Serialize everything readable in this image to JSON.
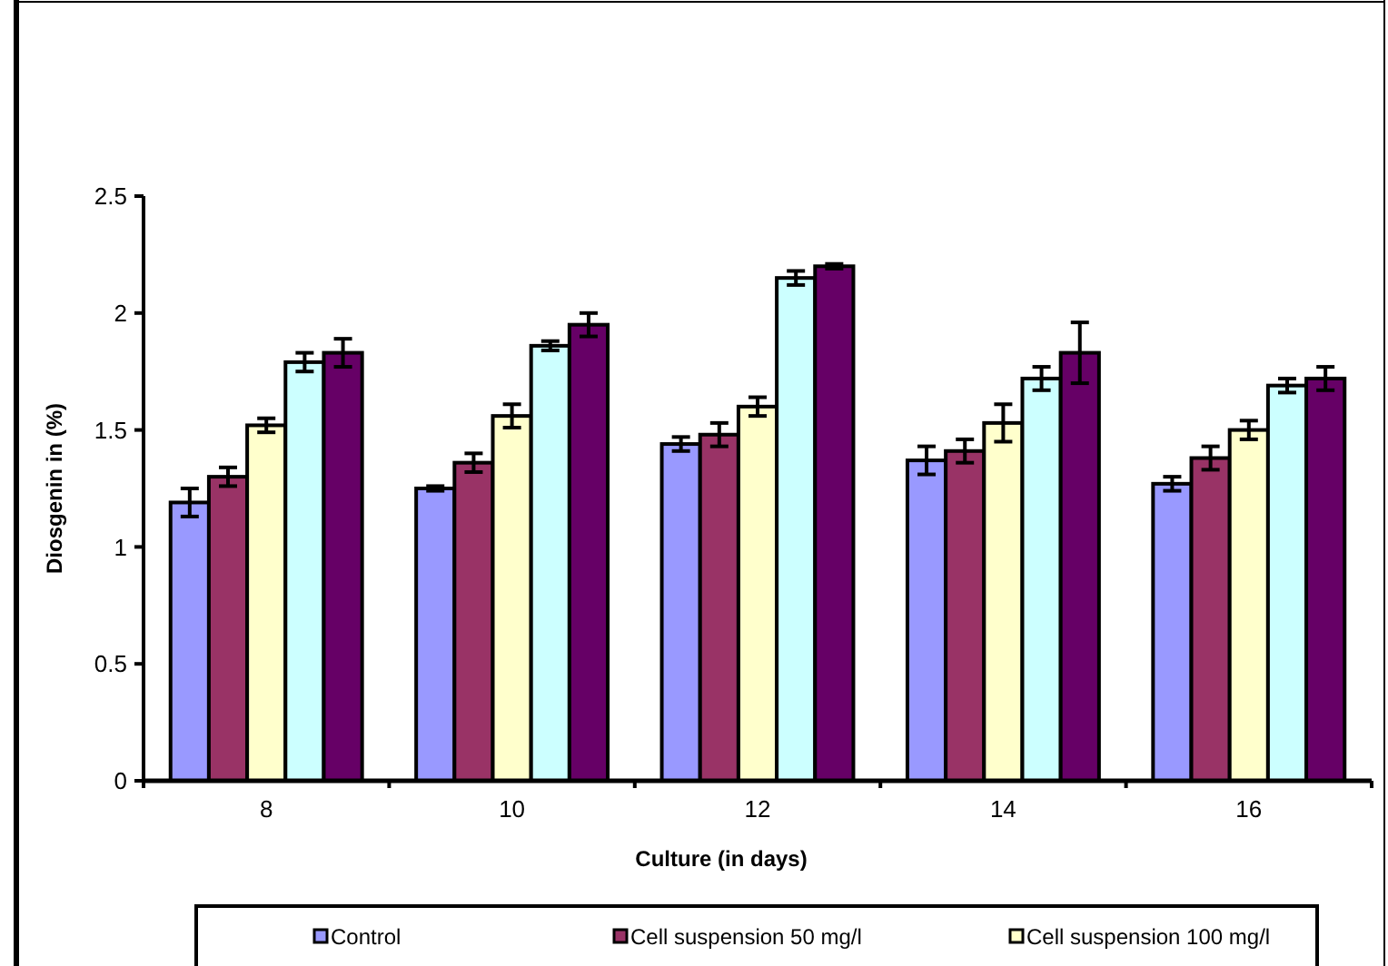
{
  "chart_data": {
    "type": "bar",
    "xlabel": "Culture (in days)",
    "ylabel": "Diosgenin in (%)",
    "categories": [
      "8",
      "10",
      "12",
      "14",
      "16"
    ],
    "series": [
      {
        "name": "Control",
        "color": "#9999ff",
        "values": [
          1.19,
          1.25,
          1.44,
          1.37,
          1.27
        ],
        "errors": [
          0.06,
          0.01,
          0.03,
          0.06,
          0.03
        ]
      },
      {
        "name": "Cell suspension 50 mg/l",
        "color": "#993366",
        "values": [
          1.3,
          1.36,
          1.48,
          1.41,
          1.38
        ],
        "errors": [
          0.04,
          0.04,
          0.05,
          0.05,
          0.05
        ]
      },
      {
        "name": "Cell suspension 100 mg/l",
        "color": "#ffffcc",
        "values": [
          1.52,
          1.56,
          1.6,
          1.53,
          1.5
        ],
        "errors": [
          0.03,
          0.05,
          0.04,
          0.08,
          0.04
        ]
      },
      {
        "color": "#ccffff",
        "values": [
          1.79,
          1.86,
          2.15,
          1.72,
          1.69
        ],
        "errors": [
          0.04,
          0.02,
          0.03,
          0.05,
          0.03
        ]
      },
      {
        "color": "#660066",
        "values": [
          1.83,
          1.95,
          2.2,
          1.83,
          1.72
        ],
        "errors": [
          0.06,
          0.05,
          0.01,
          0.13,
          0.05
        ]
      }
    ],
    "ylim": [
      0,
      2.5
    ],
    "yticks": [
      0,
      0.5,
      1,
      1.5,
      2,
      2.5
    ],
    "grid": false,
    "legend": "bottom"
  }
}
